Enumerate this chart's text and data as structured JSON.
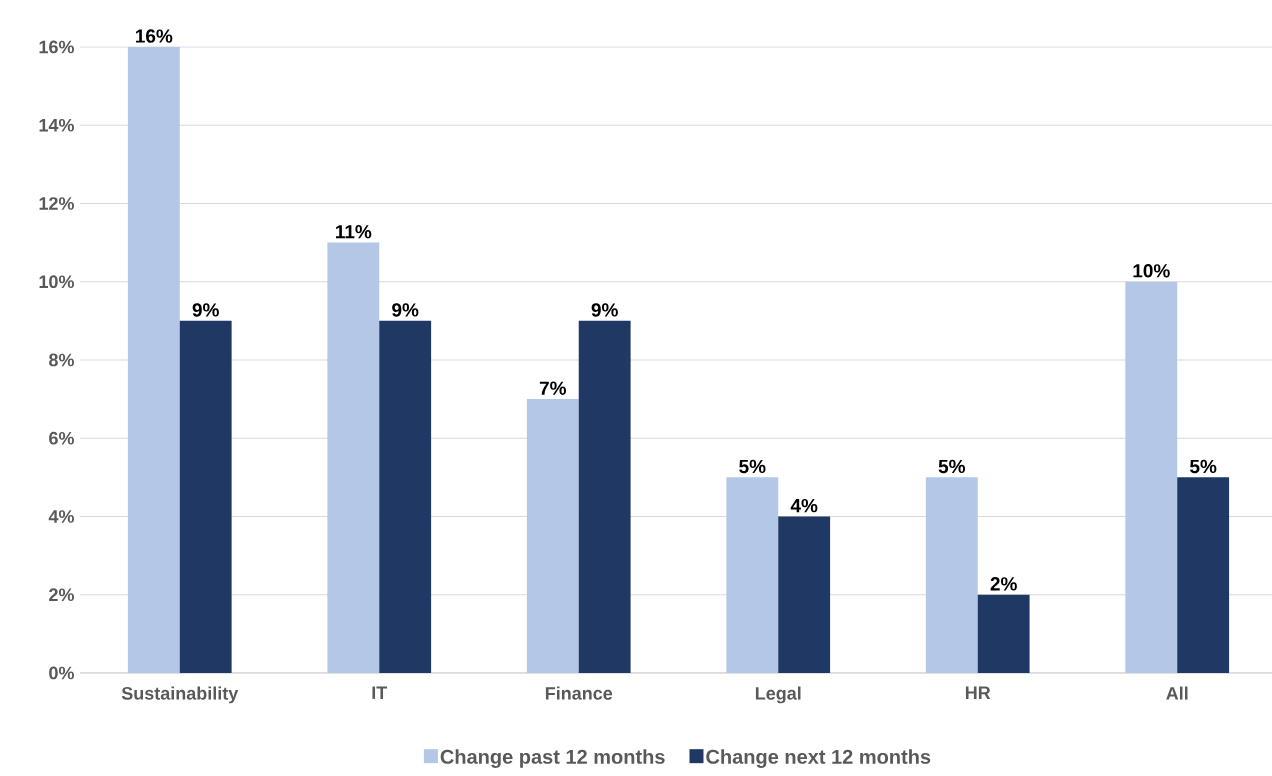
{
  "chart_data": {
    "type": "bar",
    "categories": [
      "Sustainability",
      "IT",
      "Finance",
      "Legal",
      "HR",
      "All"
    ],
    "series": [
      {
        "name": "Change past 12 months",
        "color": "#b4c7e7",
        "values": [
          16,
          11,
          7,
          5,
          5,
          10
        ],
        "value_labels": [
          "16%",
          "11%",
          "7%",
          "5%",
          "5%",
          "10%"
        ]
      },
      {
        "name": "Change next 12 months",
        "color": "#203864",
        "values": [
          9,
          9,
          9,
          4,
          2,
          5
        ],
        "value_labels": [
          "9%",
          "9%",
          "9%",
          "4%",
          "2%",
          "5%"
        ]
      }
    ],
    "ylim": [
      0,
      16
    ],
    "yticks": [
      {
        "value": 0,
        "label": "0%"
      },
      {
        "value": 2,
        "label": "2%"
      },
      {
        "value": 4,
        "label": "4%"
      },
      {
        "value": 6,
        "label": "6%"
      },
      {
        "value": 8,
        "label": "8%"
      },
      {
        "value": 10,
        "label": "10%"
      },
      {
        "value": 12,
        "label": "12%"
      },
      {
        "value": 14,
        "label": "14%"
      },
      {
        "value": 16,
        "label": "16%"
      }
    ],
    "grid": "y",
    "legend": "bottom"
  }
}
